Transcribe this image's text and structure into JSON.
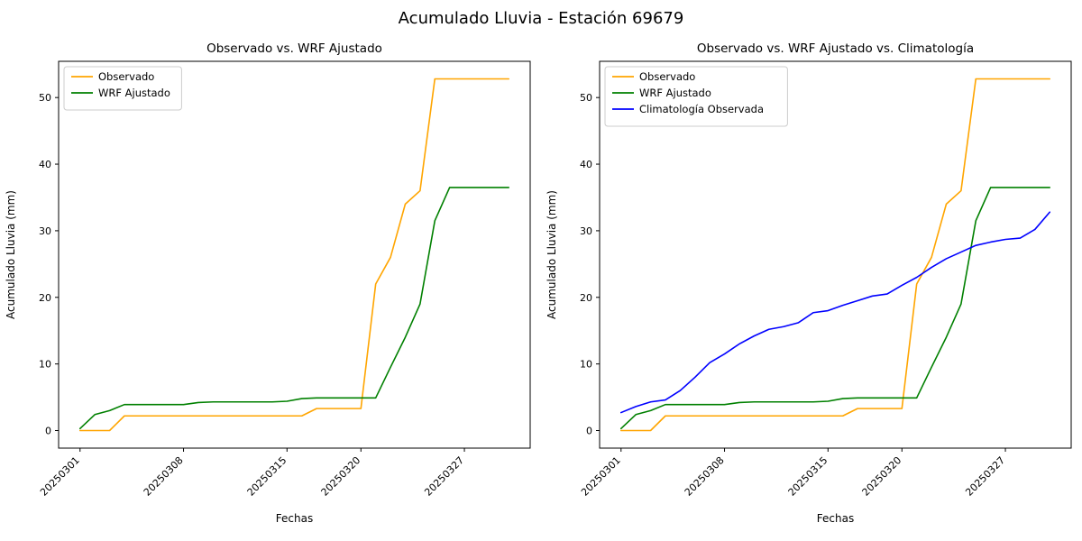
{
  "figure": {
    "title": "Acumulado Lluvia - Estación 69679",
    "background": "#ffffff"
  },
  "chart_data": [
    {
      "type": "line",
      "title": "Observado vs. WRF Ajustado",
      "xlabel": "Fechas",
      "ylabel": "Acumulado Lluvia (mm)",
      "legend_position": "upper left",
      "grid": false,
      "ylim": [
        -2.64,
        55.44
      ],
      "yticks": [
        0,
        10,
        20,
        30,
        40,
        50
      ],
      "x": [
        "20250301",
        "20250302",
        "20250303",
        "20250304",
        "20250305",
        "20250306",
        "20250307",
        "20250308",
        "20250309",
        "20250310",
        "20250311",
        "20250312",
        "20250313",
        "20250314",
        "20250315",
        "20250316",
        "20250317",
        "20250318",
        "20250319",
        "20250320",
        "20250321",
        "20250322",
        "20250323",
        "20250324",
        "20250325",
        "20250326",
        "20250327",
        "20250328",
        "20250329",
        "20250330"
      ],
      "xticks": [
        "20250301",
        "20250308",
        "20250315",
        "20250320",
        "20250327"
      ],
      "series": [
        {
          "name": "Observado",
          "color": "#ffa500",
          "values": [
            0,
            0,
            0,
            2.2,
            2.2,
            2.2,
            2.2,
            2.2,
            2.2,
            2.2,
            2.2,
            2.2,
            2.2,
            2.2,
            2.2,
            2.2,
            3.3,
            3.3,
            3.3,
            3.3,
            22,
            26,
            34,
            36,
            52.8,
            52.8,
            52.8,
            52.8,
            52.8,
            52.8
          ]
        },
        {
          "name": "WRF Ajustado",
          "color": "#008000",
          "values": [
            0.3,
            2.4,
            3.0,
            3.9,
            3.9,
            3.9,
            3.9,
            3.9,
            4.2,
            4.3,
            4.3,
            4.3,
            4.3,
            4.3,
            4.4,
            4.8,
            4.9,
            4.9,
            4.9,
            4.9,
            4.9,
            9.5,
            14,
            19,
            31.5,
            36.5,
            36.5,
            36.5,
            36.5,
            36.5
          ]
        }
      ]
    },
    {
      "type": "line",
      "title": "Observado vs. WRF Ajustado vs. Climatología",
      "xlabel": "Fechas",
      "ylabel": "Acumulado Lluvia (mm)",
      "legend_position": "upper left",
      "grid": false,
      "ylim": [
        -2.64,
        55.44
      ],
      "yticks": [
        0,
        10,
        20,
        30,
        40,
        50
      ],
      "x": [
        "20250301",
        "20250302",
        "20250303",
        "20250304",
        "20250305",
        "20250306",
        "20250307",
        "20250308",
        "20250309",
        "20250310",
        "20250311",
        "20250312",
        "20250313",
        "20250314",
        "20250315",
        "20250316",
        "20250317",
        "20250318",
        "20250319",
        "20250320",
        "20250321",
        "20250322",
        "20250323",
        "20250324",
        "20250325",
        "20250326",
        "20250327",
        "20250328",
        "20250329",
        "20250330"
      ],
      "xticks": [
        "20250301",
        "20250308",
        "20250315",
        "20250320",
        "20250327"
      ],
      "series": [
        {
          "name": "Observado",
          "color": "#ffa500",
          "values": [
            0,
            0,
            0,
            2.2,
            2.2,
            2.2,
            2.2,
            2.2,
            2.2,
            2.2,
            2.2,
            2.2,
            2.2,
            2.2,
            2.2,
            2.2,
            3.3,
            3.3,
            3.3,
            3.3,
            22,
            26,
            34,
            36,
            52.8,
            52.8,
            52.8,
            52.8,
            52.8,
            52.8
          ]
        },
        {
          "name": "WRF Ajustado",
          "color": "#008000",
          "values": [
            0.3,
            2.4,
            3.0,
            3.9,
            3.9,
            3.9,
            3.9,
            3.9,
            4.2,
            4.3,
            4.3,
            4.3,
            4.3,
            4.3,
            4.4,
            4.8,
            4.9,
            4.9,
            4.9,
            4.9,
            4.9,
            9.5,
            14,
            19,
            31.5,
            36.5,
            36.5,
            36.5,
            36.5,
            36.5
          ]
        },
        {
          "name": "Climatología Observada",
          "color": "#0000ff",
          "values": [
            2.7,
            3.6,
            4.3,
            4.6,
            6.0,
            8.0,
            10.2,
            11.5,
            13.0,
            14.2,
            15.2,
            15.6,
            16.2,
            17.7,
            18.0,
            18.8,
            19.5,
            20.2,
            20.5,
            21.8,
            23.0,
            24.5,
            25.8,
            26.8,
            27.8,
            28.3,
            28.7,
            28.9,
            30.2,
            32.8
          ]
        }
      ]
    }
  ]
}
